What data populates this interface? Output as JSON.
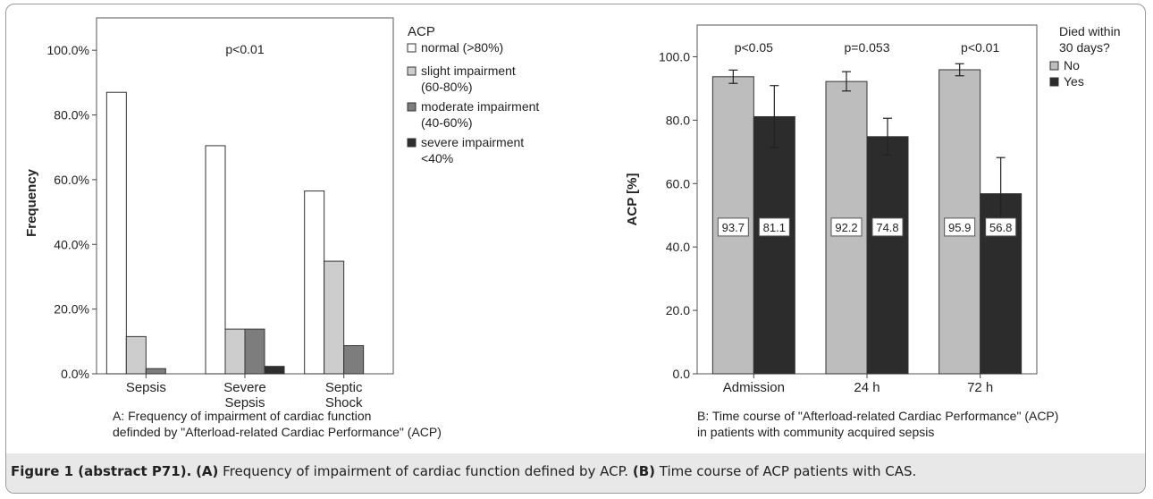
{
  "chart_data": [
    {
      "type": "bar",
      "title": "",
      "annotation": "p<0.01",
      "xlabel": "",
      "ylabel": "Frequency",
      "ylim": [
        0,
        110
      ],
      "yticks": [
        "0.0%",
        "20.0%",
        "40.0%",
        "60.0%",
        "80.0%",
        "100.0%"
      ],
      "categories": [
        [
          "Sepsis"
        ],
        [
          "Severe",
          "Sepsis"
        ],
        [
          "Septic",
          "Shock"
        ]
      ],
      "legend_title": "ACP",
      "legend_position": "top-right",
      "series": [
        {
          "name": [
            "normal (>80%)"
          ],
          "color": "#ffffff",
          "values": [
            87.0,
            70.5,
            56.5
          ]
        },
        {
          "name": [
            "slight impairment",
            "(60-80%)"
          ],
          "color": "#cdcdcd",
          "values": [
            11.5,
            13.8,
            34.8
          ]
        },
        {
          "name": [
            "moderate impairment",
            "(40-60%)"
          ],
          "color": "#7d7d7d",
          "values": [
            1.6,
            13.8,
            8.7
          ]
        },
        {
          "name": [
            "severe impairment",
            "<40%"
          ],
          "color": "#2e2e2e",
          "values": [
            0.0,
            2.3,
            0.0
          ]
        }
      ],
      "subtitle_lines": [
        "A: Frequency of impairment of cardiac function",
        "definded by \"Afterload-related Cardiac Performance\" (ACP)"
      ]
    },
    {
      "type": "bar",
      "title": "",
      "xlabel": "",
      "ylabel": "ACP [%]",
      "ylim": [
        0,
        110
      ],
      "yticks": [
        "0.0",
        "20.0",
        "40.0",
        "60.0",
        "80.0",
        "100.0"
      ],
      "categories": [
        "Admission",
        "24 h",
        "72 h"
      ],
      "p_values": [
        "p<0.05",
        "p=0.053",
        "p<0.01"
      ],
      "legend_title": [
        "Died within",
        "30 days?"
      ],
      "legend_position": "top-right",
      "series": [
        {
          "name": "No",
          "color": "#bdbdbd",
          "values": [
            93.7,
            92.2,
            95.9
          ],
          "labels": [
            "93.7",
            "92.2",
            "95.9"
          ],
          "error_low": [
            91.6,
            89.2,
            94.0
          ],
          "error_high": [
            95.8,
            95.3,
            97.8
          ]
        },
        {
          "name": "Yes",
          "color": "#2c2c2c",
          "values": [
            81.1,
            74.8,
            56.8
          ],
          "labels": [
            "81.1",
            "74.8",
            "56.8"
          ],
          "error_low": [
            71.3,
            69.0,
            45.5
          ],
          "error_high": [
            90.9,
            80.6,
            68.2
          ]
        }
      ],
      "subtitle_lines": [
        "B: Time course of \"Afterload-related Cardiac Performance\" (ACP)",
        "in patients with community acquired sepsis"
      ]
    }
  ],
  "caption": {
    "label": "Figure 1 (abstract P71).",
    "a_marker": "(A)",
    "a_text": " Frequency of impairment of cardiac function defined by ACP. ",
    "b_marker": "(B)",
    "b_text": " Time course of ACP patients with CAS."
  }
}
